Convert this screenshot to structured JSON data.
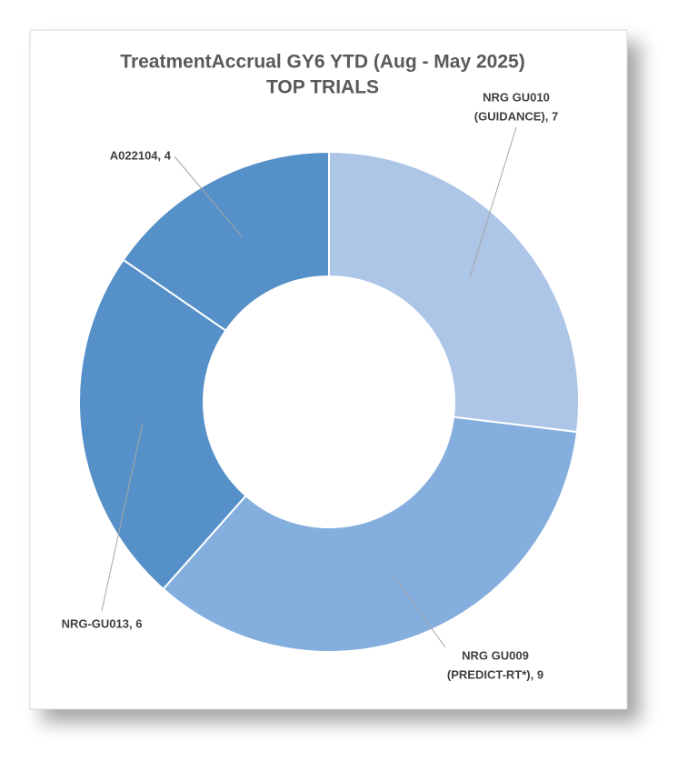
{
  "chart_data": {
    "type": "donut",
    "title": "TreatmentAccrual  GY6 YTD (Aug - May 2025)",
    "subtitle": "TOP TRIALS",
    "values": [
      7,
      9,
      6,
      4
    ],
    "value_labels": [
      [
        "NRG GU010",
        "(GUIDANCE), 7"
      ],
      [
        "NRG GU009",
        "(PREDICT-RT*), 9"
      ],
      [
        "NRG-GU013, 6"
      ],
      [
        "A022104, 4"
      ]
    ],
    "colors": [
      "#adc5e7",
      "#84aede",
      "#5590c8",
      "#5590c8"
    ]
  }
}
